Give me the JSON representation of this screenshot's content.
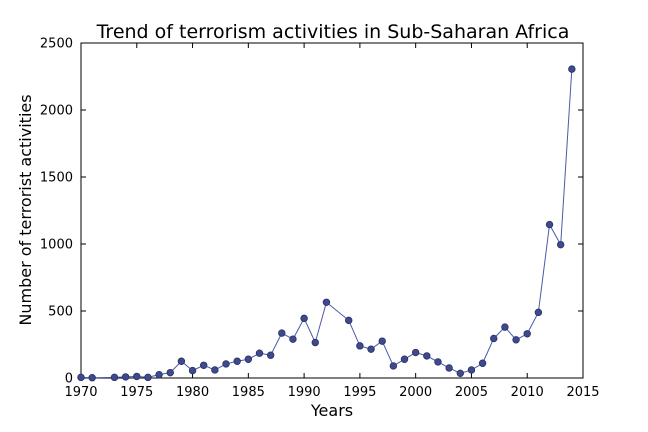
{
  "chart_data": {
    "type": "line",
    "title": "Trend of terrorism activities in Sub-Saharan Africa",
    "xlabel": "Years",
    "ylabel": "Number of terrorist activities",
    "xlim": [
      1970,
      2015
    ],
    "ylim": [
      0,
      2500
    ],
    "xticks": [
      1970,
      1975,
      1980,
      1985,
      1990,
      1995,
      2000,
      2005,
      2010,
      2015
    ],
    "yticks": [
      0,
      500,
      1000,
      1500,
      2000,
      2500
    ],
    "grid": false,
    "legend": "none",
    "colors": {
      "line": "#4a5aa8",
      "marker_fill": "#3f4a8c",
      "marker_edge": "#2a2f66",
      "axes": "#000000"
    },
    "series": [
      {
        "x": [
          1970,
          1971,
          1973,
          1974,
          1975,
          1976,
          1977,
          1978,
          1979,
          1980,
          1981,
          1982,
          1983,
          1984,
          1985,
          1986,
          1987,
          1988,
          1989,
          1990,
          1991,
          1992,
          1994,
          1995,
          1996,
          1997,
          1998,
          1999,
          2000,
          2001,
          2002,
          2003,
          2004,
          2005,
          2006,
          2007,
          2008,
          2009,
          2010,
          2011,
          2012,
          2013,
          2014
        ],
        "y": [
          5,
          2,
          5,
          8,
          12,
          5,
          25,
          40,
          125,
          55,
          95,
          60,
          105,
          125,
          140,
          185,
          170,
          335,
          290,
          445,
          265,
          565,
          430,
          240,
          215,
          275,
          90,
          140,
          190,
          165,
          120,
          75,
          35,
          60,
          110,
          295,
          380,
          285,
          330,
          490,
          1145,
          995,
          2305
        ]
      }
    ]
  }
}
